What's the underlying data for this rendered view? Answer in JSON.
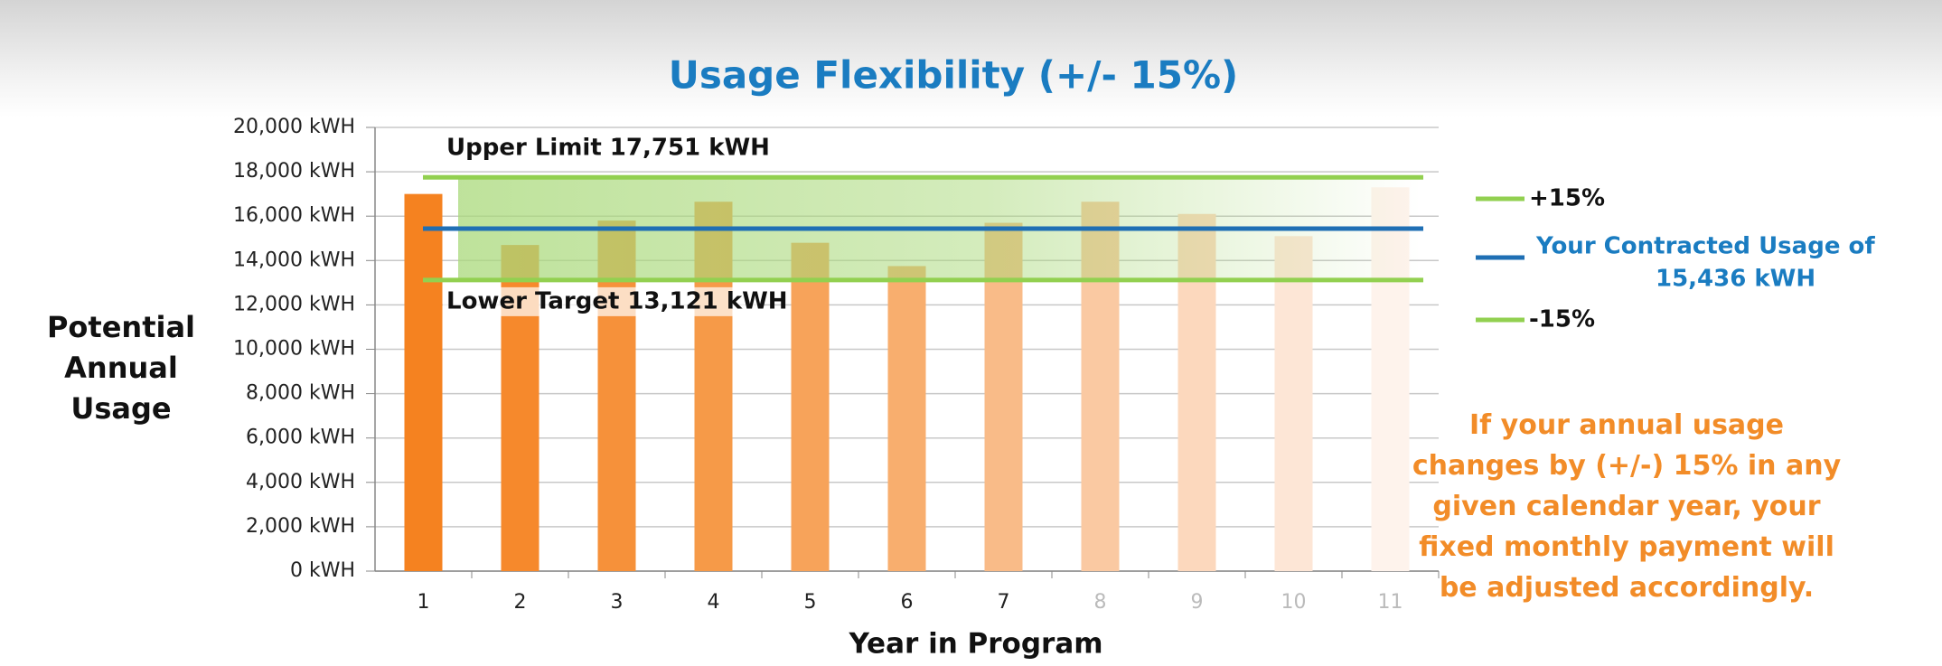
{
  "chart_data": {
    "type": "bar",
    "title": "Usage Flexibility (+/- 15%)",
    "x_label": "Year in Program",
    "y_label": "Potential Annual Usage",
    "categories": [
      "1",
      "2",
      "3",
      "4",
      "5",
      "6",
      "7",
      "8",
      "9",
      "10",
      "11"
    ],
    "values": [
      17000,
      14700,
      15800,
      16650,
      14800,
      13750,
      15700,
      16650,
      16100,
      15100,
      17300
    ],
    "colors": [
      "#f58220",
      "#f6892c",
      "#f6913a",
      "#f69a48",
      "#f7a35a",
      "#f8ae6e",
      "#f9bb88",
      "#fac9a2",
      "#fcd8bd",
      "#fde6d6",
      "#fef3ec"
    ],
    "ylim": [
      0,
      20000
    ],
    "yticks": [
      {
        "value": 0,
        "label": "0 kWH"
      },
      {
        "value": 2000,
        "label": "2,000 kWH"
      },
      {
        "value": 4000,
        "label": "4,000 kWH"
      },
      {
        "value": 6000,
        "label": "6,000 kWH"
      },
      {
        "value": 8000,
        "label": "8,000 kWH"
      },
      {
        "value": 10000,
        "label": "10,000 kWH"
      },
      {
        "value": 12000,
        "label": "12,000 kWH"
      },
      {
        "value": 14000,
        "label": "14,000 kWH"
      },
      {
        "value": 16000,
        "label": "16,000 kWH"
      },
      {
        "value": 18000,
        "label": "18,000 kWH"
      },
      {
        "value": 20000,
        "label": "20,000 kWH"
      }
    ],
    "grid": true,
    "reference_lines": [
      {
        "label": "Upper Limit 17,751 kWH",
        "value": 17751,
        "color": "#92d050"
      },
      {
        "value": 15436,
        "color": "#1f6fb4"
      },
      {
        "label": "Lower Target 13,121 kWH",
        "value": 13121,
        "color": "#92d050"
      }
    ],
    "band_color": "#a9d97a",
    "legend": [
      {
        "label": "+15%",
        "color": "#92d050"
      },
      {
        "label": "Your Contracted Usage of",
        "value_label": "15,436 kWH",
        "color": "#1f6fb4"
      },
      {
        "label": "-15%",
        "color": "#92d050"
      }
    ],
    "annotation": "If your annual usage changes by (+/-) 15% in any given calendar year, your fixed monthly payment will be adjusted accordingly."
  }
}
